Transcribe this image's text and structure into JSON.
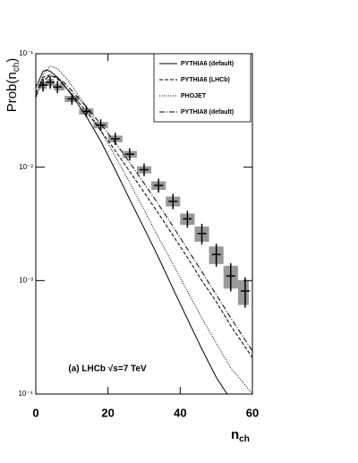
{
  "chart_data": {
    "type": "line",
    "log_y": true,
    "xlim": [
      0,
      60
    ],
    "ylim": [
      0.0001,
      0.1
    ],
    "xticks": [
      0,
      20,
      40,
      60
    ],
    "yticks": [
      {
        "value": 0.0001,
        "label": "10⁻⁴"
      },
      {
        "value": 0.001,
        "label": "10⁻³"
      },
      {
        "value": 0.01,
        "label": "10⁻²"
      },
      {
        "value": 0.1,
        "label": "10⁻¹"
      }
    ],
    "ylabel": {
      "main": "Prob(n",
      "sub": "ch",
      "end": ")"
    },
    "xlabel": {
      "main": "n",
      "sub": "ch"
    },
    "annotation": "(a) LHCb √s=7 TeV",
    "legend": "upper right",
    "data": {
      "color": "#000000",
      "band_color": "#999999",
      "x": [
        2,
        4,
        6,
        10,
        14,
        18,
        22,
        26,
        30,
        34,
        38,
        42,
        46,
        50,
        54,
        58
      ],
      "values": [
        0.053,
        0.056,
        0.051,
        0.04,
        0.031,
        0.0235,
        0.0178,
        0.013,
        0.0095,
        0.0069,
        0.005,
        0.0035,
        0.0026,
        0.0017,
        0.0011,
        0.00081
      ],
      "errors": [
        0.004,
        0.004,
        0.0035,
        0.0025,
        0.002,
        0.0015,
        0.0012,
        0.0009,
        0.0007,
        0.0006,
        0.0005,
        0.0004,
        0.0004,
        0.0003,
        0.00025,
        0.0002
      ]
    },
    "series": [
      {
        "name": "PYTHIA6 (default)",
        "color": "#000000",
        "dash": "none",
        "x": [
          0,
          2,
          3,
          4,
          6,
          8,
          10,
          14,
          18,
          22,
          26,
          30,
          34,
          38,
          42,
          46,
          50,
          53
        ],
        "values": [
          0.05,
          0.07,
          0.072,
          0.07,
          0.062,
          0.052,
          0.043,
          0.028,
          0.017,
          0.0095,
          0.0052,
          0.0029,
          0.0016,
          0.00085,
          0.00046,
          0.00025,
          0.00014,
          0.0001
        ]
      },
      {
        "name": "PYTHIA6 (LHCb)",
        "color": "#000000",
        "dash": "4,2",
        "x": [
          0,
          2,
          4,
          6,
          8,
          10,
          14,
          18,
          22,
          26,
          30,
          34,
          38,
          42,
          46,
          50,
          54,
          58,
          60
        ],
        "values": [
          0.045,
          0.062,
          0.065,
          0.06,
          0.052,
          0.044,
          0.031,
          0.021,
          0.014,
          0.0092,
          0.006,
          0.0039,
          0.0025,
          0.0016,
          0.001,
          0.00065,
          0.0004,
          0.00026,
          0.00021
        ]
      },
      {
        "name": "PHOJET",
        "color": "#000000",
        "dash": "1,1.5",
        "x": [
          0,
          2,
          4,
          6,
          8,
          10,
          14,
          18,
          22,
          26,
          30,
          34,
          38,
          42,
          46,
          50,
          54,
          58,
          60
        ],
        "values": [
          0.04,
          0.065,
          0.078,
          0.074,
          0.063,
          0.052,
          0.034,
          0.021,
          0.0125,
          0.0073,
          0.0042,
          0.0024,
          0.0014,
          0.0008,
          0.00047,
          0.00028,
          0.00017,
          0.00012,
          0.0001
        ]
      },
      {
        "name": "PYTHIA8 (default)",
        "color": "#000000",
        "dash": "6,2,1,2",
        "x": [
          0,
          2,
          4,
          6,
          8,
          10,
          14,
          18,
          22,
          26,
          30,
          34,
          38,
          42,
          46,
          50,
          54,
          58,
          60
        ],
        "values": [
          0.042,
          0.058,
          0.064,
          0.062,
          0.055,
          0.047,
          0.034,
          0.024,
          0.0165,
          0.011,
          0.0072,
          0.0047,
          0.003,
          0.0019,
          0.0012,
          0.00075,
          0.00047,
          0.0003,
          0.00024
        ]
      }
    ]
  }
}
